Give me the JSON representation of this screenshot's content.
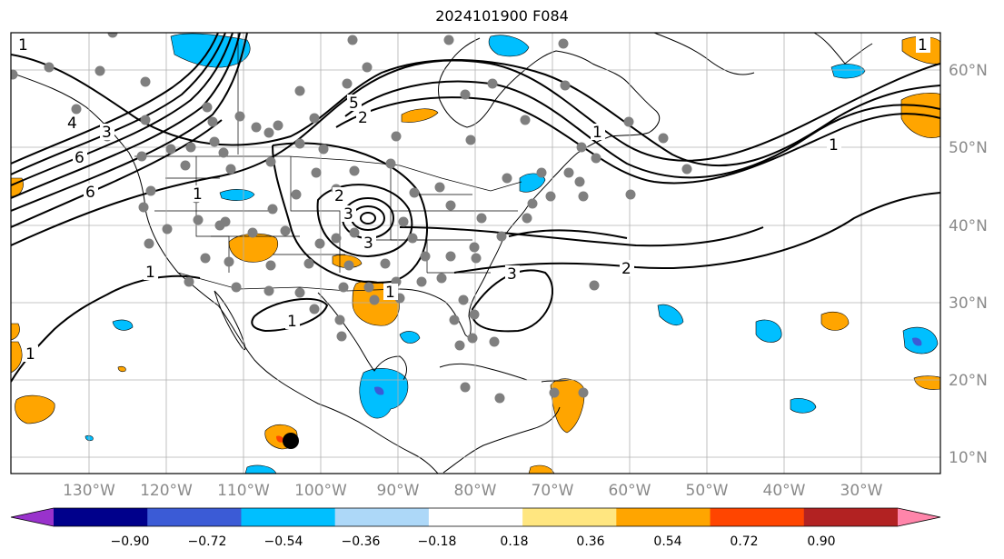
{
  "title": "2024101900 F084",
  "map": {
    "lon_labels": [
      "130°W",
      "120°W",
      "110°W",
      "100°W",
      "90°W",
      "80°W",
      "70°W",
      "60°W",
      "50°W",
      "40°W",
      "30°W"
    ],
    "lat_labels": [
      "60°N",
      "50°N",
      "40°N",
      "30°N",
      "20°N",
      "10°N"
    ],
    "contour_labels": [
      "1",
      "1",
      "4",
      "6",
      "6",
      "5",
      "2",
      "1",
      "2",
      "3",
      "3",
      "1",
      "1",
      "1",
      "2",
      "3",
      "1",
      "1",
      "3",
      "1"
    ]
  },
  "colorbar": {
    "ticks": [
      "−0.90",
      "−0.72",
      "−0.54",
      "−0.36",
      "−0.18",
      "0.18",
      "0.36",
      "0.54",
      "0.72",
      "0.90"
    ],
    "colors": [
      "#9932cc",
      "#00008b",
      "#3b5bd6",
      "#00bfff",
      "#add8f8",
      "#ffffff",
      "#ffe680",
      "#ffa500",
      "#ff4500",
      "#b22222",
      "#ff85aa"
    ]
  }
}
